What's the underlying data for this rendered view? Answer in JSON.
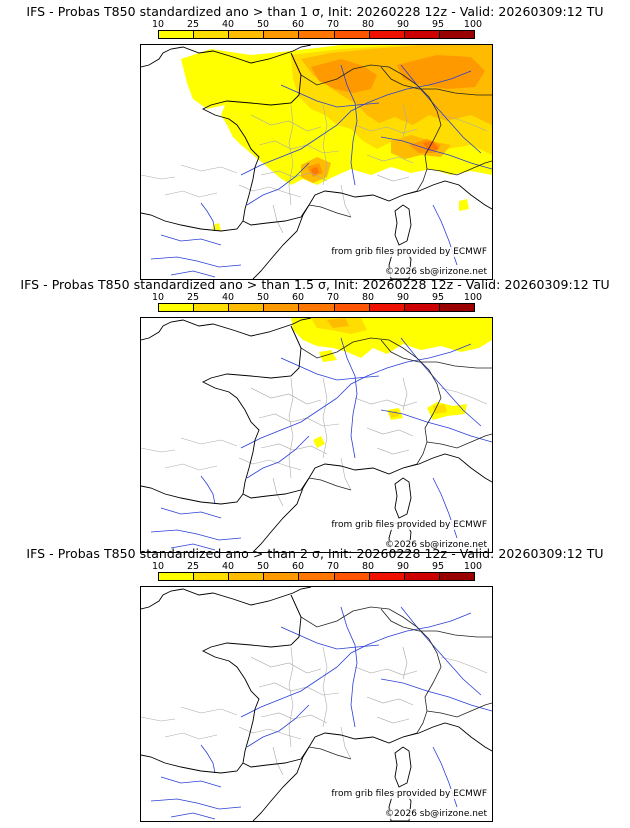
{
  "colorbar": {
    "ticks": [
      "10",
      "25",
      "40",
      "50",
      "60",
      "70",
      "80",
      "90",
      "95",
      "100"
    ],
    "colors": [
      "#ffff00",
      "#ffdd00",
      "#ffbb00",
      "#ff9900",
      "#ff7700",
      "#ff5500",
      "#ee1100",
      "#cc0000",
      "#990000",
      "#660000"
    ]
  },
  "credits": {
    "source": "from grib files provided by ECMWF",
    "copyright": "©2026 sb@irizone.net"
  },
  "panels": [
    {
      "id": "p1",
      "title": "IFS - Probas T850  standardized ano > than 1 σ, Init: 20260228 12z - Valid: 20260309:12 TU",
      "coverage": "high"
    },
    {
      "id": "p2",
      "title": "IFS - Probas T850  standardized ano > than 1.5 σ, Init: 20260228 12z - Valid: 20260309:12 TU",
      "coverage": "medium"
    },
    {
      "id": "p3",
      "title": "IFS - Probas T850  standardized ano > than 2 σ, Init: 20260228 12z - Valid: 20260309:12 TU",
      "coverage": "none"
    }
  ]
}
